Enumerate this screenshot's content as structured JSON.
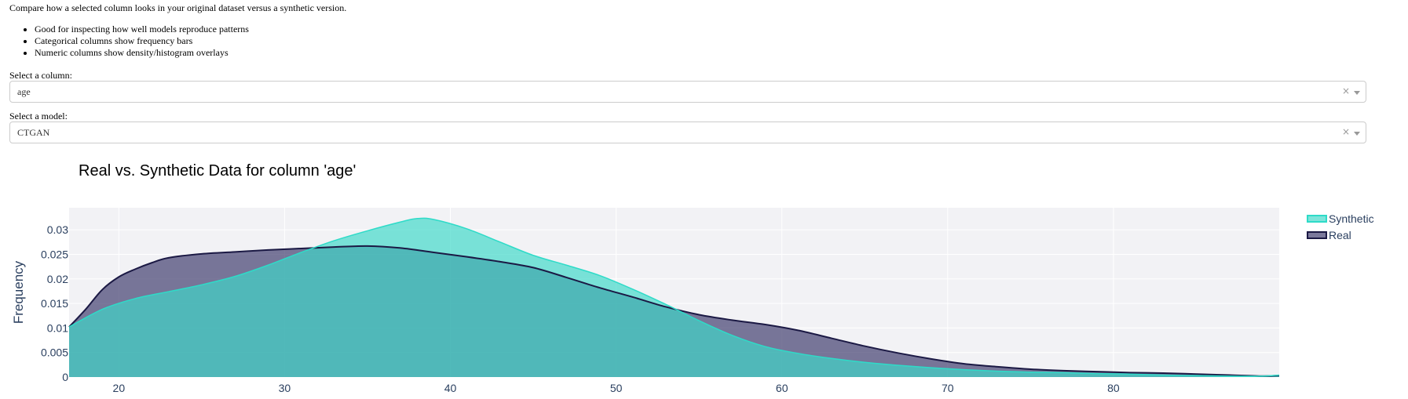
{
  "intro_text": "Compare how a selected column looks in your original dataset versus a synthetic version.",
  "bullets": [
    "Good for inspecting how well models reproduce patterns",
    "Categorical columns show frequency bars",
    "Numeric columns show density/histogram overlays"
  ],
  "column_select": {
    "label": "Select a column:",
    "value": "age",
    "clear_icon": "×"
  },
  "model_select": {
    "label": "Select a model:",
    "value": "CTGAN",
    "clear_icon": "×"
  },
  "colors": {
    "synthetic_line": "#2EDBC8",
    "synthetic_fill": "#3ED8C8",
    "real_line": "#1B1944",
    "real_fill": "#3D3A6B",
    "overlap": "#3FAEAE",
    "plot_bg": "#F2F2F5",
    "title": "#2A3F5F"
  },
  "chart_data": {
    "type": "area",
    "title": "Real vs. Synthetic Data for column 'age'",
    "xlabel": "",
    "ylabel": "Frequency",
    "xlim": [
      17,
      90
    ],
    "ylim": [
      0,
      0.0345
    ],
    "x_ticks": [
      20,
      30,
      40,
      50,
      60,
      70,
      80
    ],
    "y_ticks": [
      0,
      0.005,
      0.01,
      0.015,
      0.02,
      0.025,
      0.03
    ],
    "y_tick_labels": [
      "0",
      "0.005",
      "0.01",
      "0.015",
      "0.02",
      "0.025",
      "0.03"
    ],
    "legend_position": "top-right",
    "grid": true,
    "series": [
      {
        "name": "Synthetic",
        "x": [
          17,
          19,
          21,
          23,
          25,
          27,
          29,
          31,
          33,
          35,
          37,
          38,
          39,
          41,
          43,
          45,
          47,
          49,
          51,
          53,
          55,
          57,
          59,
          61,
          63,
          65,
          67,
          69,
          71,
          73,
          75,
          77,
          79,
          81,
          83,
          85,
          87,
          89,
          90
        ],
        "y": [
          0.0102,
          0.0138,
          0.016,
          0.0174,
          0.0188,
          0.0205,
          0.0228,
          0.0254,
          0.0278,
          0.0298,
          0.0316,
          0.0323,
          0.0321,
          0.0302,
          0.0275,
          0.0248,
          0.0228,
          0.0207,
          0.0179,
          0.0148,
          0.0115,
          0.0085,
          0.0062,
          0.0048,
          0.0038,
          0.003,
          0.0024,
          0.0019,
          0.0015,
          0.0012,
          0.001,
          0.0009,
          0.0007,
          0.0006,
          0.0004,
          0.0003,
          0.0002,
          0.0002,
          0.0004
        ]
      },
      {
        "name": "Real",
        "x": [
          17,
          18,
          19,
          20,
          21,
          22,
          23,
          25,
          27,
          29,
          31,
          33,
          35,
          37,
          39,
          41,
          43,
          45,
          47,
          49,
          51,
          53,
          55,
          57,
          59,
          61,
          63,
          65,
          67,
          69,
          71,
          73,
          75,
          77,
          79,
          81,
          83,
          85,
          87,
          89,
          90
        ],
        "y": [
          0.0102,
          0.0138,
          0.0178,
          0.0204,
          0.022,
          0.0233,
          0.0243,
          0.0251,
          0.0255,
          0.0259,
          0.0262,
          0.0265,
          0.0267,
          0.0263,
          0.0254,
          0.0245,
          0.0235,
          0.0223,
          0.0203,
          0.0182,
          0.0163,
          0.0143,
          0.0127,
          0.0116,
          0.0107,
          0.0095,
          0.0079,
          0.0063,
          0.0049,
          0.0037,
          0.0027,
          0.0021,
          0.0016,
          0.0013,
          0.0011,
          0.0009,
          0.0008,
          0.0006,
          0.0004,
          0.0002,
          0.0003
        ]
      }
    ]
  }
}
